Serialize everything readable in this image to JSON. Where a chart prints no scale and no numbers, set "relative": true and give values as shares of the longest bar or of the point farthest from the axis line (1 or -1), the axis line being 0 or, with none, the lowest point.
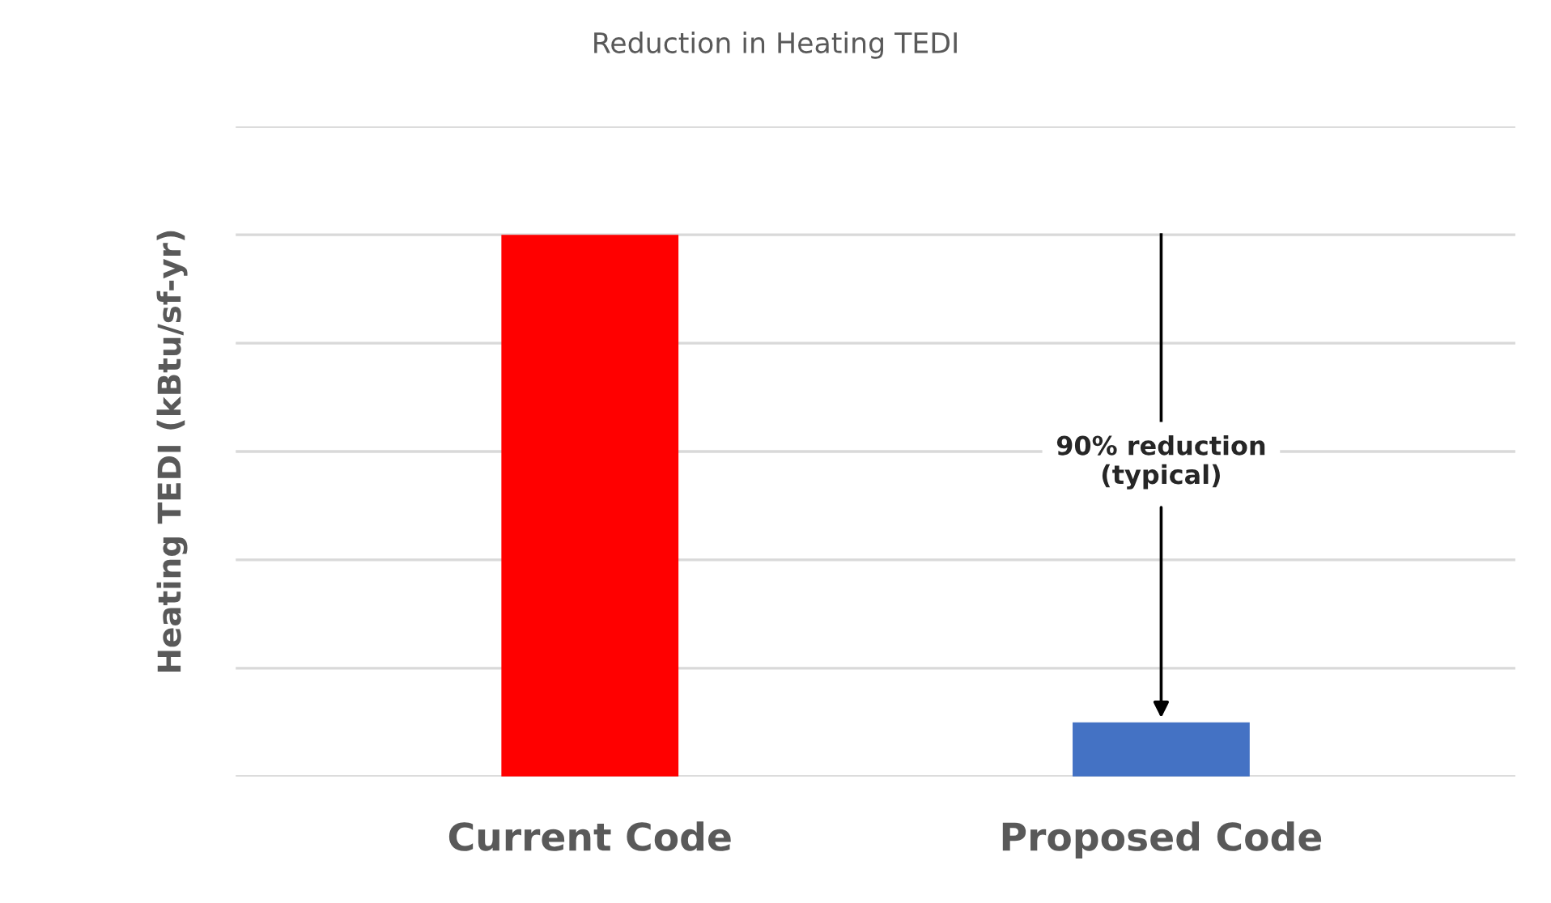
{
  "chart_data": {
    "type": "bar",
    "title": "Reduction in Heating TEDI",
    "ylabel": "Heating TEDI (kBtu/sf-yr)",
    "categories": [
      "Current Code",
      "Proposed Code"
    ],
    "values": [
      1,
      0.1
    ],
    "colors": [
      "#ff0000",
      "#4472c4"
    ],
    "relative": true,
    "grid": "y",
    "annotations": [
      {
        "text": "90% reduction\n(typical)",
        "x": "Proposed Code",
        "y": 0.1
      }
    ]
  }
}
